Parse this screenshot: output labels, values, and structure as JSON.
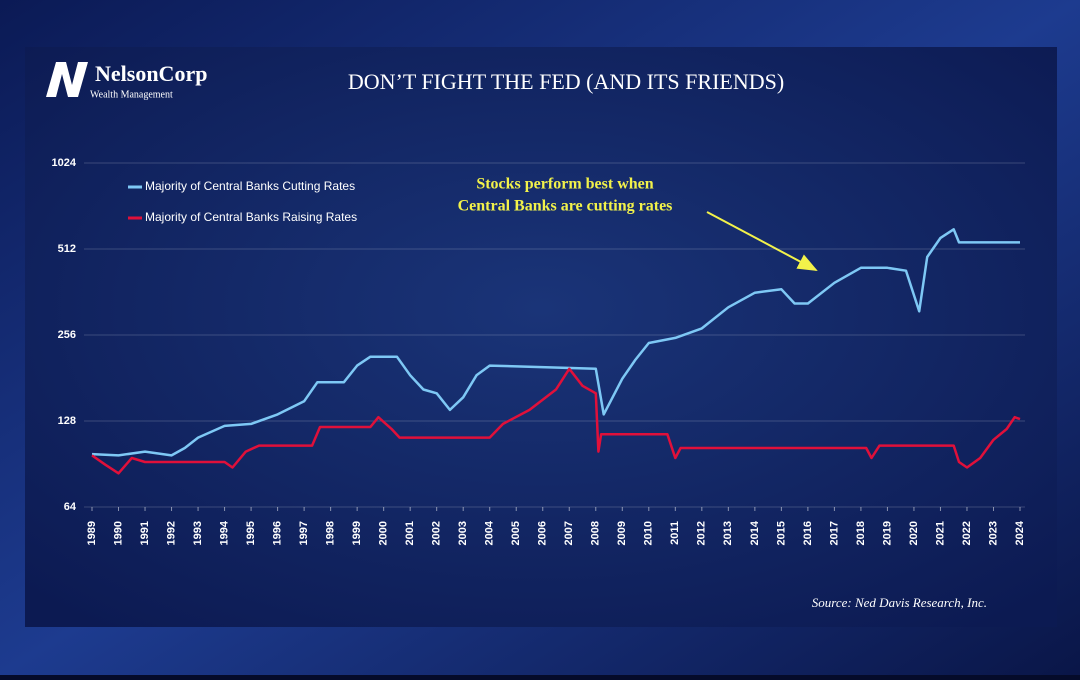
{
  "logo": {
    "name": "NelsonCorp",
    "tagline": "Wealth Management"
  },
  "chart_data": {
    "type": "line",
    "title": "DON’T FIGHT THE FED (AND ITS FRIENDS)",
    "annotation": [
      "Stocks perform best when",
      "Central Banks are cutting rates"
    ],
    "source": "Source: Ned Davis Research, Inc.",
    "yscale": "log",
    "ylim": [
      64,
      1024
    ],
    "yticks": [
      64,
      128,
      256,
      512,
      1024
    ],
    "xlim": [
      1989,
      2024
    ],
    "xticks": [
      1989,
      1990,
      1991,
      1992,
      1993,
      1994,
      1995,
      1996,
      1997,
      1998,
      1999,
      2000,
      2001,
      2002,
      2003,
      2004,
      2005,
      2006,
      2007,
      2008,
      2009,
      2010,
      2011,
      2012,
      2013,
      2014,
      2015,
      2016,
      2017,
      2018,
      2019,
      2020,
      2021,
      2022,
      2023,
      2024
    ],
    "grid": true,
    "legend": "upper left",
    "series": [
      {
        "name": "Majority of Central Banks Cutting Rates",
        "color": "#7ec8f5",
        "x": [
          1989,
          1990,
          1991,
          1992,
          1992.5,
          1993,
          1994,
          1995,
          1996,
          1997,
          1997.5,
          1998.5,
          1999,
          1999.5,
          2000.5,
          2001,
          2001.5,
          2002,
          2002.5,
          2003,
          2003.5,
          2004,
          2008,
          2008.3,
          2009,
          2009.5,
          2010,
          2011,
          2012,
          2013,
          2014,
          2015,
          2015.5,
          2016,
          2017,
          2018,
          2019,
          2019.7,
          2020.2,
          2020.5,
          2021,
          2021.5,
          2021.7,
          2024
        ],
        "values": [
          98,
          97,
          100,
          97,
          103,
          112,
          123,
          125,
          135,
          150,
          175,
          175,
          200,
          215,
          215,
          185,
          165,
          160,
          140,
          155,
          185,
          200,
          195,
          135,
          180,
          210,
          240,
          250,
          270,
          320,
          360,
          370,
          330,
          330,
          390,
          440,
          440,
          430,
          310,
          480,
          560,
          600,
          540,
          540
        ]
      },
      {
        "name": "Majority of Central Banks Raising Rates",
        "color": "#e0103a",
        "x": [
          1989,
          1989.5,
          1990,
          1990.5,
          1991,
          1994,
          1994.3,
          1994.8,
          1995.3,
          1997.3,
          1997.6,
          1999.5,
          1999.8,
          2000.3,
          2000.6,
          2004,
          2004.5,
          2005.5,
          2006.5,
          2007,
          2007.5,
          2008,
          2008.1,
          2008.2,
          2010.7,
          2011,
          2011.2,
          2018.2,
          2018.4,
          2018.7,
          2021.5,
          2021.7,
          2022,
          2022.5,
          2023,
          2023.5,
          2023.8,
          2024
        ],
        "values": [
          97,
          90,
          84,
          95,
          92,
          92,
          88,
          100,
          105,
          105,
          122,
          122,
          132,
          120,
          112,
          112,
          125,
          140,
          165,
          195,
          170,
          160,
          100,
          115,
          115,
          95,
          103,
          103,
          95,
          105,
          105,
          92,
          88,
          95,
          110,
          120,
          132,
          130
        ]
      }
    ]
  }
}
